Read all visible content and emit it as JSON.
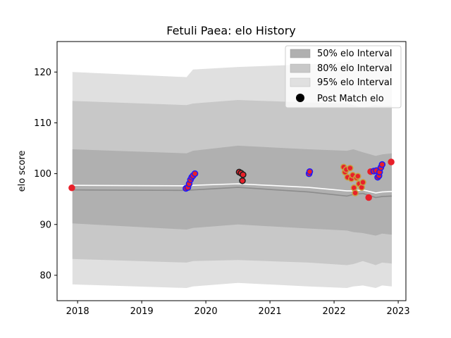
{
  "chart_data": {
    "type": "line",
    "title": "Fetuli Paea: elo History",
    "xlabel": "",
    "ylabel": "elo score",
    "xlim": [
      2017.68,
      2023.12
    ],
    "ylim": [
      75.0,
      126.0
    ],
    "x_ticks": [
      {
        "value": 2018,
        "label": "2018"
      },
      {
        "value": 2019,
        "label": "2019"
      },
      {
        "value": 2020,
        "label": "2020"
      },
      {
        "value": 2021,
        "label": "2021"
      },
      {
        "value": 2022,
        "label": "2022"
      },
      {
        "value": 2023,
        "label": "2023"
      }
    ],
    "y_ticks": [
      {
        "value": 80,
        "label": "80"
      },
      {
        "value": 90,
        "label": "90"
      },
      {
        "value": 100,
        "label": "100"
      },
      {
        "value": 110,
        "label": "110"
      },
      {
        "value": 120,
        "label": "120"
      }
    ],
    "legend_position": "top-right",
    "colors": {
      "band50": "#b0b0b0",
      "band80": "#c8c8c8",
      "band95": "#e0e0e0",
      "median_line": "#8c8c8c",
      "mean_line": "#ffffff",
      "point_fill": "#e8202a",
      "edge_blue": "#1a1aff",
      "edge_black": "#202020",
      "edge_gold": "#c8a040"
    },
    "legend": [
      {
        "label": "50% elo Interval",
        "swatch": "band50"
      },
      {
        "label": "80% elo Interval",
        "swatch": "band80"
      },
      {
        "label": "95% elo Interval",
        "swatch": "band95"
      },
      {
        "label": "Post Match elo",
        "swatch": "point"
      }
    ],
    "bands": {
      "x": [
        2017.92,
        2019.7,
        2019.8,
        2020.5,
        2021.6,
        2022.2,
        2022.3,
        2022.45,
        2022.65,
        2022.75,
        2022.9
      ],
      "band95_upper": [
        120.0,
        119.0,
        120.5,
        121.0,
        121.5,
        122.0,
        122.5,
        122.8,
        123.5,
        123.0,
        123.2
      ],
      "band95_lower": [
        78.2,
        77.5,
        77.8,
        78.5,
        77.8,
        77.5,
        77.8,
        78.0,
        77.5,
        78.0,
        77.8
      ],
      "band80_upper": [
        114.3,
        113.5,
        113.8,
        114.5,
        114.0,
        113.8,
        113.5,
        113.0,
        113.5,
        113.3,
        113.4
      ],
      "band80_lower": [
        83.2,
        82.5,
        82.8,
        83.0,
        82.5,
        82.0,
        82.2,
        82.8,
        82.0,
        82.5,
        82.3
      ],
      "band50_upper": [
        104.8,
        104.0,
        104.5,
        105.5,
        104.8,
        104.5,
        104.8,
        104.2,
        103.5,
        103.8,
        104.0
      ],
      "band50_lower": [
        90.2,
        89.0,
        89.3,
        90.0,
        89.2,
        88.8,
        88.5,
        88.3,
        87.8,
        88.2,
        88.0
      ],
      "median_line": [
        96.8,
        96.7,
        96.8,
        97.3,
        96.4,
        95.6,
        95.9,
        96.1,
        95.3,
        95.5,
        95.6
      ],
      "mean_line": [
        97.7,
        97.6,
        97.7,
        98.0,
        97.3,
        96.6,
        96.6,
        96.8,
        96.2,
        96.4,
        96.5
      ]
    },
    "points": [
      {
        "x": 2017.91,
        "y": 97.2,
        "edge": "point_fill"
      },
      {
        "x": 2019.69,
        "y": 97.1,
        "edge": "edge_blue"
      },
      {
        "x": 2019.72,
        "y": 97.3,
        "edge": "edge_blue"
      },
      {
        "x": 2019.74,
        "y": 98.0,
        "edge": "edge_blue"
      },
      {
        "x": 2019.76,
        "y": 98.8,
        "edge": "edge_blue"
      },
      {
        "x": 2019.78,
        "y": 99.3,
        "edge": "edge_blue"
      },
      {
        "x": 2019.8,
        "y": 99.6,
        "edge": "edge_blue"
      },
      {
        "x": 2019.83,
        "y": 100.0,
        "edge": "edge_blue"
      },
      {
        "x": 2020.52,
        "y": 100.3,
        "edge": "edge_black"
      },
      {
        "x": 2020.55,
        "y": 100.1,
        "edge": "edge_black"
      },
      {
        "x": 2020.58,
        "y": 99.8,
        "edge": "edge_black"
      },
      {
        "x": 2020.57,
        "y": 98.6,
        "edge": "edge_black"
      },
      {
        "x": 2021.61,
        "y": 100.0,
        "edge": "edge_blue"
      },
      {
        "x": 2021.62,
        "y": 100.4,
        "edge": "edge_blue"
      },
      {
        "x": 2022.15,
        "y": 101.3,
        "edge": "edge_gold"
      },
      {
        "x": 2022.17,
        "y": 100.3,
        "edge": "edge_gold"
      },
      {
        "x": 2022.19,
        "y": 100.8,
        "edge": "edge_gold"
      },
      {
        "x": 2022.21,
        "y": 99.3,
        "edge": "edge_gold"
      },
      {
        "x": 2022.25,
        "y": 101.1,
        "edge": "edge_gold"
      },
      {
        "x": 2022.27,
        "y": 99.0,
        "edge": "edge_gold"
      },
      {
        "x": 2022.29,
        "y": 99.7,
        "edge": "edge_gold"
      },
      {
        "x": 2022.31,
        "y": 97.2,
        "edge": "edge_gold"
      },
      {
        "x": 2022.33,
        "y": 96.2,
        "edge": "edge_gold"
      },
      {
        "x": 2022.35,
        "y": 99.2,
        "edge": "edge_gold"
      },
      {
        "x": 2022.37,
        "y": 99.5,
        "edge": "edge_gold"
      },
      {
        "x": 2022.39,
        "y": 98.0,
        "edge": "edge_gold"
      },
      {
        "x": 2022.43,
        "y": 97.3,
        "edge": "edge_gold"
      },
      {
        "x": 2022.45,
        "y": 98.3,
        "edge": "edge_gold"
      },
      {
        "x": 2022.54,
        "y": 95.3,
        "edge": "point_fill"
      },
      {
        "x": 2022.57,
        "y": 100.4,
        "edge": "point_fill"
      },
      {
        "x": 2022.62,
        "y": 100.5,
        "edge": "edge_blue"
      },
      {
        "x": 2022.66,
        "y": 100.6,
        "edge": "edge_blue"
      },
      {
        "x": 2022.68,
        "y": 99.3,
        "edge": "edge_blue"
      },
      {
        "x": 2022.7,
        "y": 99.6,
        "edge": "edge_blue"
      },
      {
        "x": 2022.71,
        "y": 100.3,
        "edge": "edge_blue"
      },
      {
        "x": 2022.73,
        "y": 101.2,
        "edge": "edge_blue"
      },
      {
        "x": 2022.75,
        "y": 101.8,
        "edge": "edge_blue"
      },
      {
        "x": 2022.89,
        "y": 102.3,
        "edge": "point_fill"
      }
    ]
  }
}
